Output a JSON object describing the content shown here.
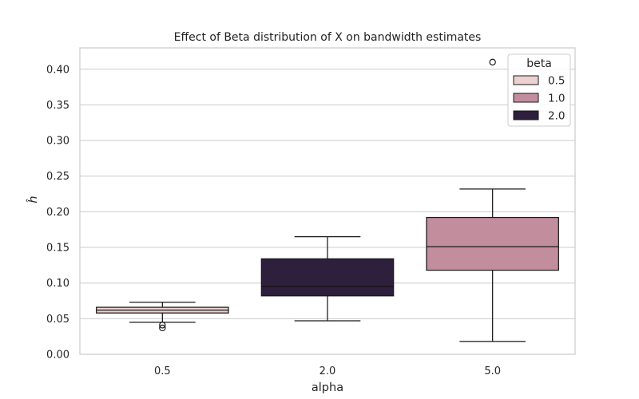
{
  "chart_data": {
    "type": "box",
    "title": "Effect of Beta distribution of X on bandwidth estimates",
    "xlabel": "alpha",
    "ylabel": "ĥ",
    "categories": [
      "0.5",
      "2.0",
      "5.0"
    ],
    "ylim": [
      0.0,
      0.43
    ],
    "yticks": [
      "0.00",
      "0.05",
      "0.10",
      "0.15",
      "0.20",
      "0.25",
      "0.30",
      "0.35",
      "0.40"
    ],
    "grid": true,
    "legend": {
      "title": "beta",
      "position": "top-right",
      "entries": [
        {
          "label": "0.5",
          "color": "#ebd1cf"
        },
        {
          "label": "1.0",
          "color": "#c28e9e"
        },
        {
          "label": "2.0",
          "color": "#2e1f3c"
        }
      ]
    },
    "boxes": [
      {
        "category": "0.5",
        "beta": "0.5",
        "color": "#ebd1cf",
        "whisker_low": 0.045,
        "q1": 0.058,
        "median": 0.062,
        "q3": 0.066,
        "whisker_high": 0.073,
        "outliers": [
          0.037,
          0.041
        ]
      },
      {
        "category": "2.0",
        "beta": "2.0",
        "color": "#2e1f3c",
        "whisker_low": 0.047,
        "q1": 0.082,
        "median": 0.095,
        "q3": 0.134,
        "whisker_high": 0.165,
        "outliers": []
      },
      {
        "category": "5.0",
        "beta": "1.0",
        "color": "#c28e9e",
        "whisker_low": 0.018,
        "q1": 0.118,
        "median": 0.151,
        "q3": 0.192,
        "whisker_high": 0.232,
        "outliers": [
          0.41
        ]
      }
    ]
  }
}
